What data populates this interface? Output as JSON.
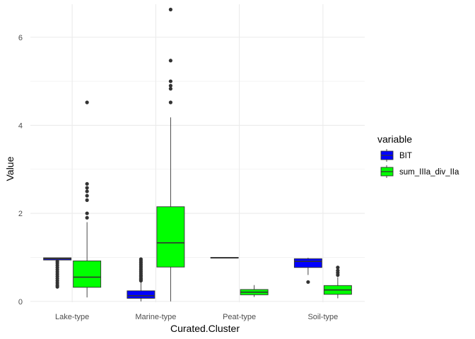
{
  "chart_data": {
    "type": "boxplot",
    "xlabel": "Curated.Cluster",
    "ylabel": "Value",
    "ylim": [
      -0.02,
      6.75
    ],
    "yticks": [
      0,
      2,
      4,
      6
    ],
    "grid": true,
    "legend": {
      "title": "variable",
      "position": "right"
    },
    "categories": [
      "Lake-type",
      "Marine-type",
      "Peat-type",
      "Soil-type"
    ],
    "series": [
      {
        "name": "BIT",
        "color": "#0000FF",
        "boxes": [
          {
            "category": "Lake-type",
            "whisker_low": 0.94,
            "q1": 0.94,
            "median": 0.97,
            "q3": 0.99,
            "whisker_high": 0.99,
            "outliers": [
              0.33,
              0.37,
              0.42,
              0.47,
              0.52,
              0.57,
              0.62,
              0.67,
              0.72,
              0.77,
              0.82,
              0.87,
              0.91
            ]
          },
          {
            "category": "Marine-type",
            "whisker_low": 0.0,
            "q1": 0.07,
            "median": 0.13,
            "q3": 0.24,
            "whisker_high": 0.44,
            "outliers": [
              0.47,
              0.5,
              0.53,
              0.57,
              0.6,
              0.64,
              0.68,
              0.72,
              0.76,
              0.8,
              0.84,
              0.88,
              0.92,
              0.96
            ]
          },
          {
            "category": "Peat-type",
            "whisker_low": 0.99,
            "q1": 0.99,
            "median": 0.99,
            "q3": 1.0,
            "whisker_high": 1.0,
            "outliers": []
          },
          {
            "category": "Soil-type",
            "whisker_low": 0.6,
            "q1": 0.77,
            "median": 0.91,
            "q3": 0.97,
            "whisker_high": 0.99,
            "outliers": [
              0.44
            ]
          }
        ]
      },
      {
        "name": "sum_IIIa_div_IIa",
        "color": "#00FF00",
        "boxes": [
          {
            "category": "Lake-type",
            "whisker_low": 0.09,
            "q1": 0.32,
            "median": 0.55,
            "q3": 0.92,
            "whisker_high": 1.8,
            "outliers": [
              1.9,
              2.0,
              2.3,
              2.4,
              2.5,
              2.58,
              2.67,
              4.52
            ]
          },
          {
            "category": "Marine-type",
            "whisker_low": 0.0,
            "q1": 0.78,
            "median": 1.33,
            "q3": 2.15,
            "whisker_high": 4.18,
            "outliers": [
              4.52,
              4.83,
              4.9,
              5.0,
              5.47,
              6.63
            ]
          },
          {
            "category": "Peat-type",
            "whisker_low": 0.1,
            "q1": 0.15,
            "median": 0.21,
            "q3": 0.27,
            "whisker_high": 0.37,
            "outliers": []
          },
          {
            "category": "Soil-type",
            "whisker_low": 0.07,
            "q1": 0.16,
            "median": 0.26,
            "q3": 0.36,
            "whisker_high": 0.55,
            "outliers": [
              0.6,
              0.65,
              0.7,
              0.77
            ]
          }
        ]
      }
    ]
  }
}
